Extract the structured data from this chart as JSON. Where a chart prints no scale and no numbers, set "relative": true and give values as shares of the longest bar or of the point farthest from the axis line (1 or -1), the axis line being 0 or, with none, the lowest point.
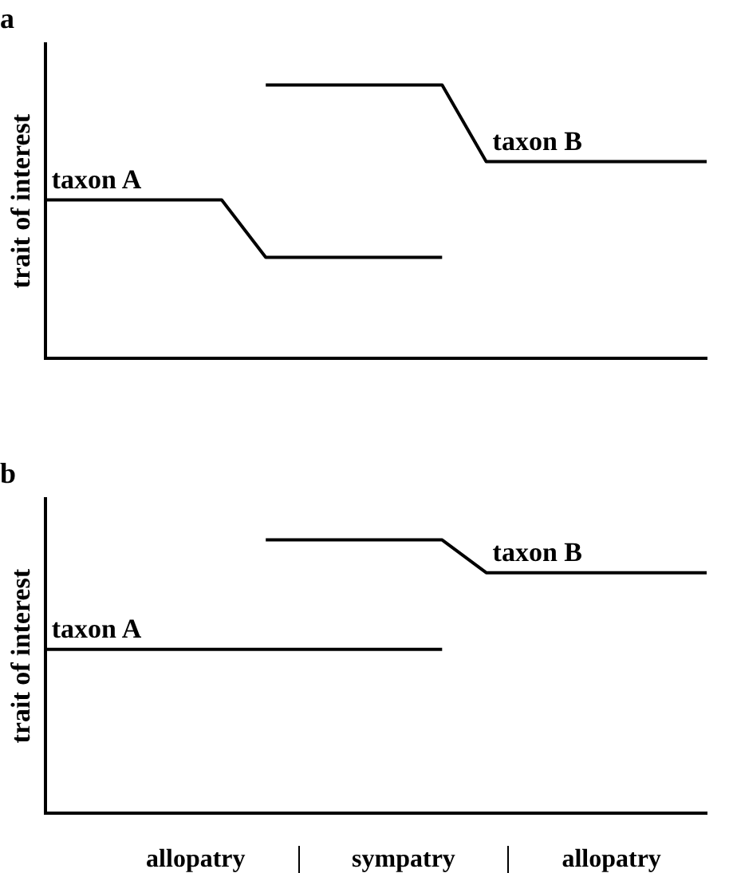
{
  "chart_data": [
    {
      "type": "line",
      "title": "a",
      "ylabel": "trait of interest",
      "relative": true,
      "legend": false,
      "grid": false,
      "marker": "none",
      "categories": [
        null,
        null,
        null,
        null,
        null,
        null,
        null,
        null,
        null,
        null,
        null,
        null,
        null,
        null,
        null,
        null
      ],
      "series": [
        {
          "name": "taxon A",
          "color": "#000000",
          "values": [
            0.58,
            0.58,
            0.58,
            0.58,
            0.58,
            0.37,
            0.37,
            0.37,
            0.37,
            0.37,
            null,
            null,
            null,
            null,
            null,
            null
          ]
        },
        {
          "name": "taxon B",
          "color": "#000000",
          "values": [
            null,
            null,
            null,
            null,
            null,
            1,
            1,
            1,
            1,
            1,
            0.72,
            0.72,
            0.72,
            0.72,
            0.72,
            0.72
          ]
        }
      ]
    },
    {
      "type": "line",
      "title": "b",
      "ylabel": "trait of interest",
      "relative": true,
      "legend": false,
      "grid": false,
      "marker": "none",
      "categories": [
        null,
        null,
        null,
        null,
        null,
        null,
        null,
        null,
        null,
        null,
        null,
        null,
        null,
        null,
        null,
        null
      ],
      "series": [
        {
          "name": "taxon A",
          "color": "#000000",
          "values": [
            0.6,
            0.6,
            0.6,
            0.6,
            0.6,
            0.6,
            0.6,
            0.6,
            0.6,
            0.6,
            null,
            null,
            null,
            null,
            null,
            null
          ]
        },
        {
          "name": "taxon B",
          "color": "#000000",
          "values": [
            null,
            null,
            null,
            null,
            null,
            1,
            1,
            1,
            1,
            1,
            0.88,
            0.88,
            0.88,
            0.88,
            0.88,
            0.88
          ]
        }
      ],
      "annotations": [
        "allopatry",
        "sympatry",
        "allopatry"
      ]
    }
  ]
}
